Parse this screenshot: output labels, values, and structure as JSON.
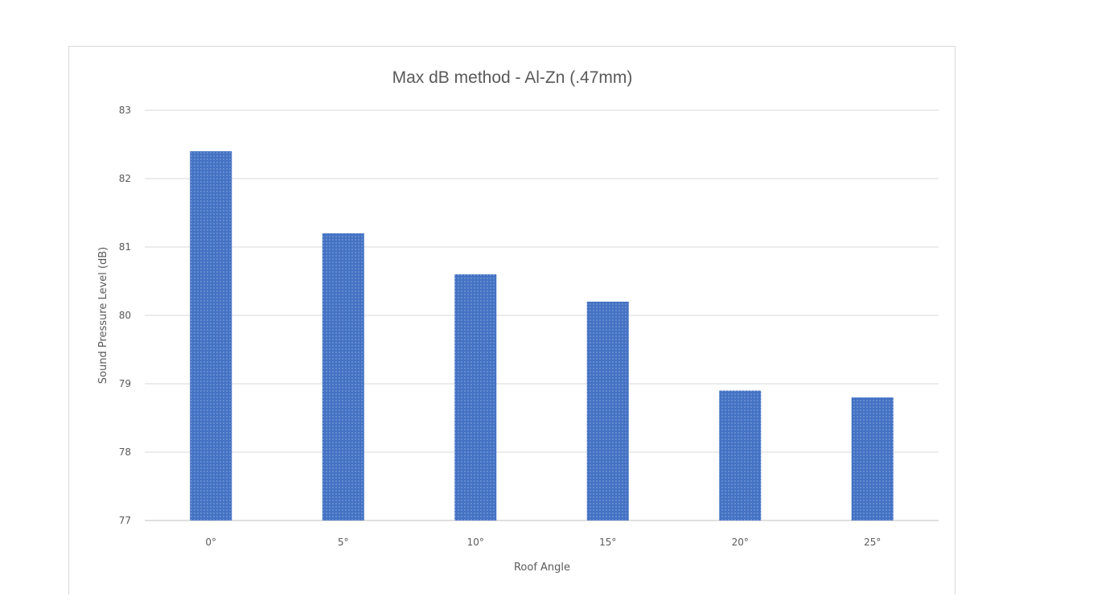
{
  "chart_data": {
    "type": "bar",
    "title": "Max dB method - Al-Zn (.47mm)",
    "xlabel": "Roof Angle",
    "ylabel": "Sound Pressure Level  (dB)",
    "categories": [
      "0°",
      "5°",
      "10°",
      "15°",
      "20°",
      "25°"
    ],
    "values": [
      82.4,
      81.2,
      80.6,
      80.2,
      78.9,
      78.8
    ],
    "ylim": [
      77,
      83
    ],
    "yticks": [
      "77",
      "78",
      "79",
      "80",
      "81",
      "82",
      "83"
    ],
    "grid": true,
    "legend": "none",
    "bar_color": "#4472c4",
    "bar_pattern": "dotted"
  }
}
